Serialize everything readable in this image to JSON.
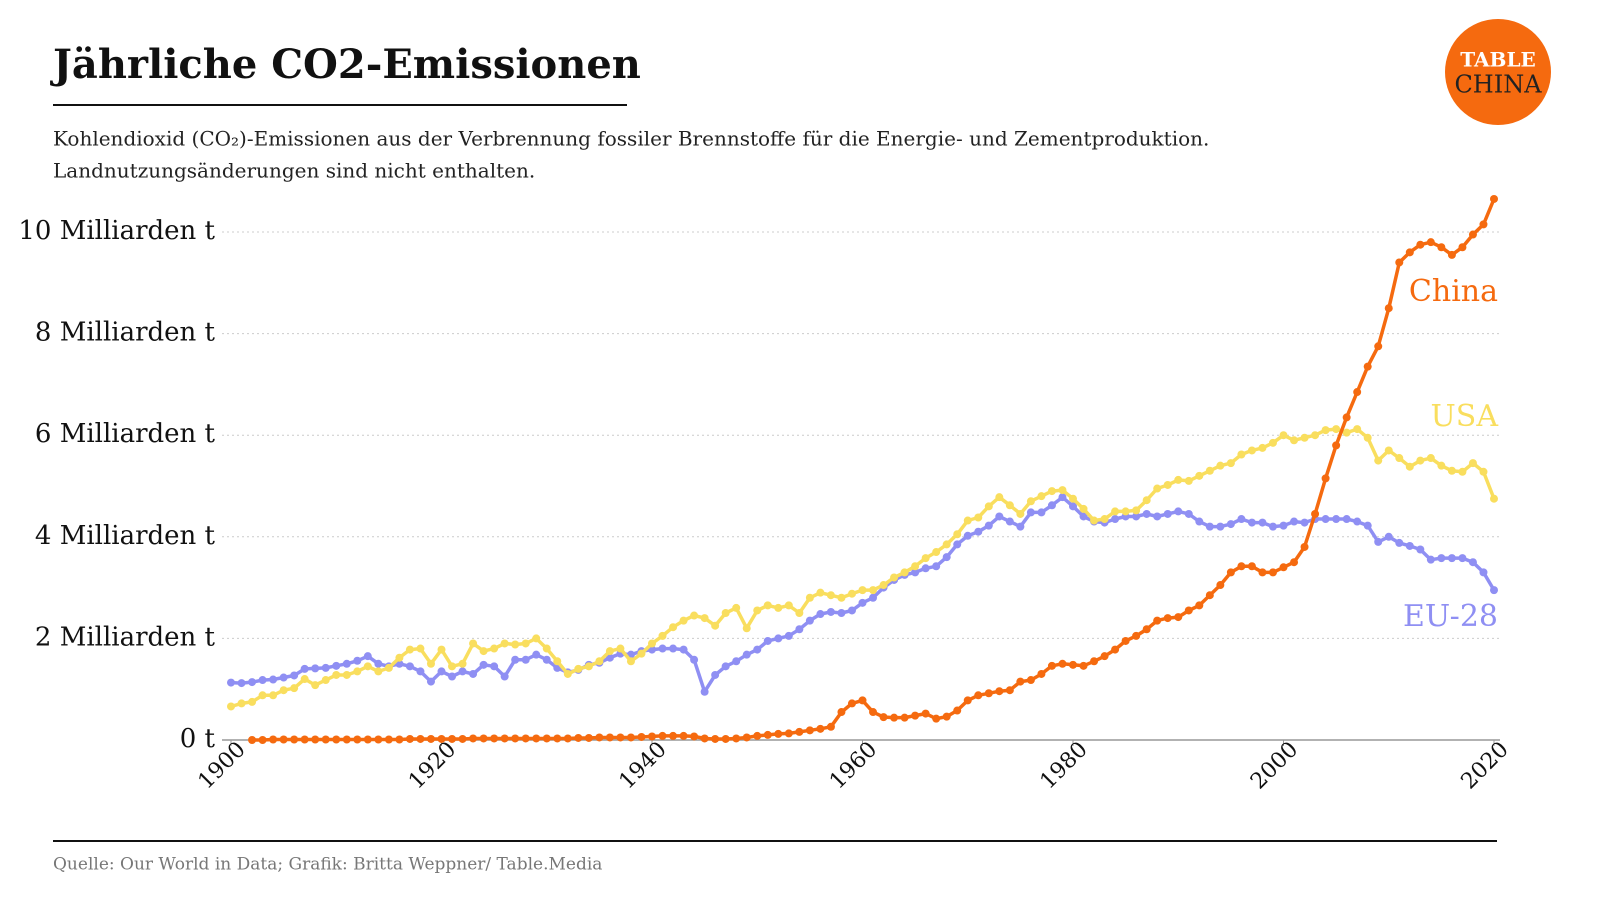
{
  "chart_data": {
    "type": "line",
    "title": "Jährliche CO2-Emissionen",
    "subtitle": [
      "Kohlendioxid (CO₂)-Emissionen aus der Verbrennung fossiler Brennstoffe für die Energie- und Zementproduktion.",
      "Landnutzungsänderungen sind nicht enthalten."
    ],
    "source": "Quelle: Our World in Data; Grafik: Britta Weppner/ Table.Media",
    "logo": [
      "TABLE",
      "CHINA"
    ],
    "x": [
      1900,
      1901,
      1902,
      1903,
      1904,
      1905,
      1906,
      1907,
      1908,
      1909,
      1910,
      1911,
      1912,
      1913,
      1914,
      1915,
      1916,
      1917,
      1918,
      1919,
      1920,
      1921,
      1922,
      1923,
      1924,
      1925,
      1926,
      1927,
      1928,
      1929,
      1930,
      1931,
      1932,
      1933,
      1934,
      1935,
      1936,
      1937,
      1938,
      1939,
      1940,
      1941,
      1942,
      1943,
      1944,
      1945,
      1946,
      1947,
      1948,
      1949,
      1950,
      1951,
      1952,
      1953,
      1954,
      1955,
      1956,
      1957,
      1958,
      1959,
      1960,
      1961,
      1962,
      1963,
      1964,
      1965,
      1966,
      1967,
      1968,
      1969,
      1970,
      1971,
      1972,
      1973,
      1974,
      1975,
      1976,
      1977,
      1978,
      1979,
      1980,
      1981,
      1982,
      1983,
      1984,
      1985,
      1986,
      1987,
      1988,
      1989,
      1990,
      1991,
      1992,
      1993,
      1994,
      1995,
      1996,
      1997,
      1998,
      1999,
      2000,
      2001,
      2002,
      2003,
      2004,
      2005,
      2006,
      2007,
      2008,
      2009,
      2010,
      2011,
      2012,
      2013,
      2014,
      2015,
      2016,
      2017,
      2018,
      2019,
      2020
    ],
    "series": [
      {
        "name": "China",
        "color": "#f56a0f",
        "values": [
          null,
          null,
          0,
          0,
          0.01,
          0.01,
          0.01,
          0.01,
          0.01,
          0.01,
          0.01,
          0.01,
          0.01,
          0.01,
          0.01,
          0.01,
          0.01,
          0.02,
          0.02,
          0.02,
          0.02,
          0.02,
          0.02,
          0.03,
          0.03,
          0.03,
          0.03,
          0.03,
          0.03,
          0.03,
          0.03,
          0.03,
          0.03,
          0.04,
          0.04,
          0.05,
          0.05,
          0.05,
          0.05,
          0.06,
          0.07,
          0.08,
          0.08,
          0.08,
          0.07,
          0.03,
          0.02,
          0.02,
          0.03,
          0.05,
          0.08,
          0.1,
          0.12,
          0.13,
          0.16,
          0.19,
          0.22,
          0.26,
          0.55,
          0.72,
          0.78,
          0.55,
          0.45,
          0.44,
          0.44,
          0.48,
          0.52,
          0.42,
          0.46,
          0.58,
          0.78,
          0.88,
          0.92,
          0.96,
          0.98,
          1.15,
          1.18,
          1.3,
          1.46,
          1.5,
          1.48,
          1.46,
          1.55,
          1.65,
          1.78,
          1.95,
          2.05,
          2.18,
          2.35,
          2.4,
          2.42,
          2.55,
          2.65,
          2.85,
          3.05,
          3.3,
          3.42,
          3.42,
          3.3,
          3.3,
          3.4,
          3.5,
          3.8,
          4.45,
          5.15,
          5.8,
          6.35,
          6.85,
          7.35,
          7.75,
          8.5,
          9.4,
          9.6,
          9.75,
          9.8,
          9.7,
          9.55,
          9.7,
          9.95,
          10.15,
          10.65
        ]
      },
      {
        "name": "USA",
        "color": "#f9de5e",
        "values": [
          0.66,
          0.72,
          0.75,
          0.88,
          0.88,
          0.98,
          1.02,
          1.2,
          1.08,
          1.18,
          1.28,
          1.28,
          1.35,
          1.45,
          1.35,
          1.42,
          1.62,
          1.78,
          1.8,
          1.5,
          1.78,
          1.45,
          1.5,
          1.9,
          1.75,
          1.8,
          1.9,
          1.88,
          1.9,
          2,
          1.8,
          1.55,
          1.3,
          1.4,
          1.45,
          1.55,
          1.75,
          1.8,
          1.55,
          1.7,
          1.9,
          2.05,
          2.22,
          2.35,
          2.45,
          2.4,
          2.25,
          2.5,
          2.6,
          2.2,
          2.55,
          2.65,
          2.6,
          2.65,
          2.5,
          2.8,
          2.9,
          2.85,
          2.8,
          2.88,
          2.95,
          2.95,
          3.05,
          3.2,
          3.3,
          3.42,
          3.58,
          3.7,
          3.85,
          4.05,
          4.32,
          4.38,
          4.6,
          4.78,
          4.62,
          4.45,
          4.7,
          4.8,
          4.9,
          4.92,
          4.75,
          4.55,
          4.32,
          4.35,
          4.5,
          4.5,
          4.52,
          4.72,
          4.95,
          5.02,
          5.12,
          5.1,
          5.2,
          5.3,
          5.4,
          5.45,
          5.62,
          5.7,
          5.75,
          5.85,
          6,
          5.9,
          5.95,
          6,
          6.1,
          6.12,
          6.05,
          6.12,
          5.95,
          5.5,
          5.7,
          5.55,
          5.38,
          5.5,
          5.55,
          5.4,
          5.3,
          5.28,
          5.45,
          5.28,
          4.75
        ]
      },
      {
        "name": "EU-28",
        "color": "#8f8ff3",
        "values": [
          1.13,
          1.12,
          1.14,
          1.18,
          1.19,
          1.23,
          1.27,
          1.4,
          1.41,
          1.42,
          1.46,
          1.5,
          1.56,
          1.65,
          1.5,
          1.45,
          1.5,
          1.45,
          1.35,
          1.15,
          1.35,
          1.25,
          1.35,
          1.3,
          1.48,
          1.45,
          1.25,
          1.58,
          1.58,
          1.68,
          1.58,
          1.42,
          1.33,
          1.38,
          1.48,
          1.52,
          1.62,
          1.7,
          1.68,
          1.75,
          1.78,
          1.8,
          1.8,
          1.78,
          1.58,
          0.95,
          1.28,
          1.45,
          1.55,
          1.68,
          1.78,
          1.95,
          2,
          2.05,
          2.18,
          2.35,
          2.48,
          2.52,
          2.5,
          2.55,
          2.7,
          2.8,
          3,
          3.15,
          3.25,
          3.3,
          3.38,
          3.42,
          3.6,
          3.85,
          4.02,
          4.1,
          4.22,
          4.4,
          4.3,
          4.2,
          4.48,
          4.48,
          4.62,
          4.78,
          4.6,
          4.4,
          4.3,
          4.28,
          4.35,
          4.4,
          4.4,
          4.45,
          4.4,
          4.45,
          4.5,
          4.45,
          4.3,
          4.2,
          4.2,
          4.25,
          4.35,
          4.28,
          4.28,
          4.2,
          4.22,
          4.3,
          4.28,
          4.35,
          4.35,
          4.35,
          4.35,
          4.3,
          4.22,
          3.9,
          4,
          3.88,
          3.82,
          3.75,
          3.55,
          3.58,
          3.58,
          3.58,
          3.5,
          3.3,
          2.95
        ]
      }
    ],
    "xlim": [
      1900,
      2020
    ],
    "xticks": [
      1900,
      1920,
      1940,
      1960,
      1980,
      2000,
      2020
    ],
    "ylim": [
      0,
      10
    ],
    "yticks": [
      {
        "value": 0,
        "label": "0 t"
      },
      {
        "value": 2,
        "label": "2 Milliarden t"
      },
      {
        "value": 4,
        "label": "4 Milliarden t"
      },
      {
        "value": 6,
        "label": "6 Milliarden t"
      },
      {
        "value": 8,
        "label": "8 Milliarden t"
      },
      {
        "value": 10,
        "label": "10 Milliarden t"
      }
    ],
    "grid": true
  }
}
